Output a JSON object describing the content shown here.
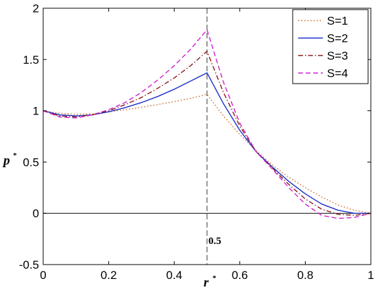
{
  "chart_data": {
    "type": "line",
    "title": "",
    "xlabel": "r",
    "xlabel_sup": "*",
    "ylabel": "p",
    "ylabel_sup": "*",
    "xlim": [
      0,
      1
    ],
    "ylim": [
      -0.5,
      2
    ],
    "xticks": [
      "0",
      "0.2",
      "0.4",
      "0.6",
      "0.8",
      "1"
    ],
    "yticks": [
      "-0.5",
      "0",
      "0.5",
      "1",
      "1.5",
      "2"
    ],
    "grid": false,
    "legend_position": "top-right",
    "reference_lines": [
      {
        "orientation": "horizontal",
        "value": 0,
        "color": "#000000",
        "style": "solid"
      },
      {
        "orientation": "vertical",
        "value": 0.5,
        "color": "#555555",
        "style": "dashed",
        "label": "0.5"
      }
    ],
    "series": [
      {
        "name": "S=1",
        "color": "#c8641e",
        "dash": "dotted",
        "x": [
          0,
          0.05,
          0.1,
          0.15,
          0.2,
          0.25,
          0.3,
          0.35,
          0.4,
          0.45,
          0.5,
          0.55,
          0.6,
          0.65,
          0.7,
          0.75,
          0.8,
          0.85,
          0.9,
          0.95,
          1
        ],
        "y": [
          1.0,
          0.975,
          0.965,
          0.97,
          0.99,
          1.01,
          1.035,
          1.06,
          1.09,
          1.12,
          1.16,
          0.95,
          0.77,
          0.61,
          0.47,
          0.35,
          0.25,
          0.16,
          0.08,
          0.03,
          0.0
        ]
      },
      {
        "name": "S=2",
        "color": "#1a2ec8",
        "dash": "solid",
        "x": [
          0,
          0.05,
          0.1,
          0.15,
          0.2,
          0.25,
          0.3,
          0.35,
          0.4,
          0.45,
          0.5,
          0.55,
          0.6,
          0.65,
          0.7,
          0.75,
          0.8,
          0.85,
          0.9,
          0.95,
          1
        ],
        "y": [
          1.0,
          0.96,
          0.95,
          0.96,
          0.99,
          1.03,
          1.08,
          1.14,
          1.21,
          1.29,
          1.37,
          1.07,
          0.81,
          0.6,
          0.45,
          0.31,
          0.19,
          0.09,
          0.03,
          0.0,
          0.0
        ]
      },
      {
        "name": "S=3",
        "color": "#8a1a1a",
        "dash": "dashdot",
        "x": [
          0,
          0.05,
          0.1,
          0.15,
          0.2,
          0.25,
          0.3,
          0.35,
          0.4,
          0.45,
          0.5,
          0.55,
          0.6,
          0.65,
          0.7,
          0.75,
          0.8,
          0.85,
          0.9,
          0.95,
          1
        ],
        "y": [
          1.0,
          0.95,
          0.94,
          0.96,
          1.0,
          1.06,
          1.13,
          1.22,
          1.32,
          1.44,
          1.58,
          1.18,
          0.85,
          0.6,
          0.44,
          0.28,
          0.14,
          0.04,
          -0.01,
          -0.02,
          0.0
        ]
      },
      {
        "name": "S=4",
        "color": "#cc1fcc",
        "dash": "dashed",
        "x": [
          0,
          0.05,
          0.1,
          0.15,
          0.2,
          0.25,
          0.3,
          0.35,
          0.4,
          0.45,
          0.5,
          0.55,
          0.6,
          0.65,
          0.7,
          0.75,
          0.8,
          0.85,
          0.9,
          0.95,
          1
        ],
        "y": [
          1.0,
          0.94,
          0.93,
          0.96,
          1.01,
          1.08,
          1.18,
          1.3,
          1.44,
          1.6,
          1.79,
          1.28,
          0.88,
          0.6,
          0.43,
          0.25,
          0.09,
          -0.02,
          -0.05,
          -0.04,
          0.0
        ]
      }
    ]
  }
}
